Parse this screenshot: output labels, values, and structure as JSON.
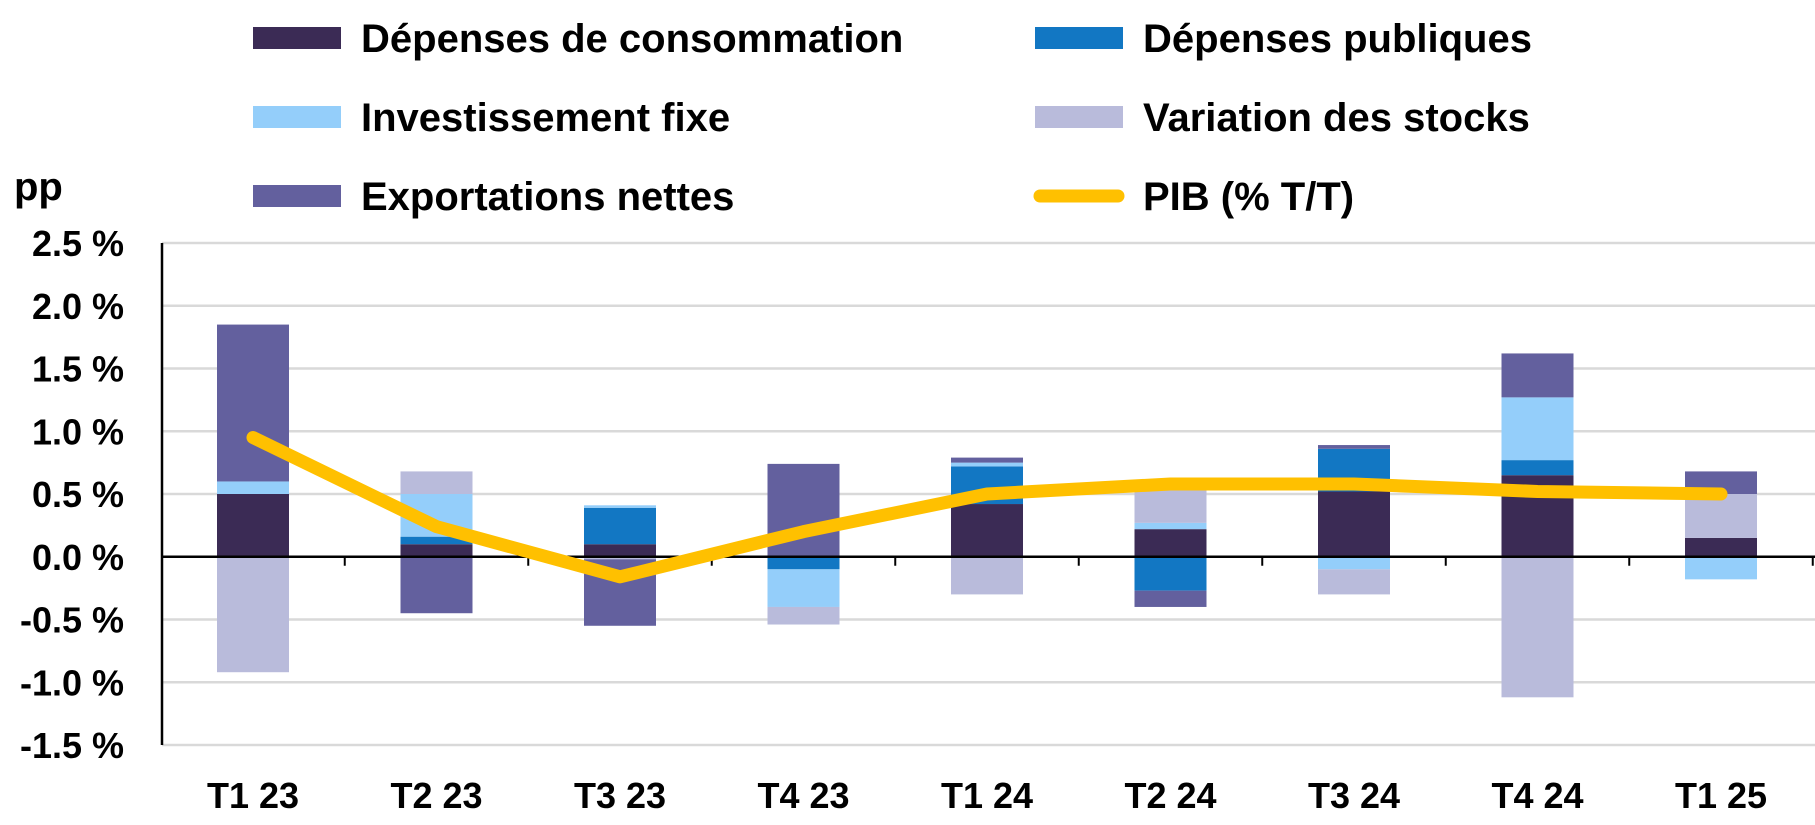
{
  "chart_data": {
    "type": "bar",
    "stacked": true,
    "unit_label": "pp",
    "categories": [
      "T1 23",
      "T2 23",
      "T3 23",
      "T4 23",
      "T1 24",
      "T2 24",
      "T3 24",
      "T4 24",
      "T1 25"
    ],
    "ylim": [
      -1.5,
      2.5
    ],
    "yticks": [
      2.5,
      2.0,
      1.5,
      1.0,
      0.5,
      0.0,
      -0.5,
      -1.0,
      -1.5
    ],
    "ytick_labels": [
      "2.5 %",
      "2.0 %",
      "1.5 %",
      "1.0 %",
      "0.5 %",
      "0.0 %",
      "-0.5 %",
      "-1.0 %",
      "-1.5 %"
    ],
    "grid": true,
    "series": [
      {
        "name": "Dépenses de consommation",
        "color": "#3b2b55",
        "values": [
          0.5,
          0.1,
          0.1,
          0.0,
          0.42,
          0.22,
          0.52,
          0.65,
          0.15
        ]
      },
      {
        "name": "Dépenses publiques",
        "color": "#1277c3",
        "values": [
          0.0,
          0.06,
          0.29,
          -0.1,
          0.3,
          -0.27,
          0.34,
          0.12,
          0.0
        ]
      },
      {
        "name": "Investissement fixe",
        "color": "#94cefa",
        "values": [
          0.1,
          0.34,
          0.02,
          -0.3,
          0.03,
          0.05,
          -0.1,
          0.5,
          -0.18
        ]
      },
      {
        "name": "Variation des stocks",
        "color": "#b9bbdb",
        "values": [
          -0.92,
          0.18,
          -0.02,
          -0.14,
          -0.3,
          0.28,
          -0.2,
          -1.12,
          0.35
        ]
      },
      {
        "name": "Exportations nettes",
        "color": "#63609e",
        "values": [
          1.25,
          -0.45,
          -0.53,
          0.74,
          0.04,
          -0.13,
          0.03,
          0.35,
          0.18
        ]
      }
    ],
    "line": {
      "name": "PIB (% T/T)",
      "color": "#ffc000",
      "values": [
        0.95,
        0.24,
        -0.16,
        0.2,
        0.5,
        0.58,
        0.58,
        0.52,
        0.5
      ]
    }
  }
}
